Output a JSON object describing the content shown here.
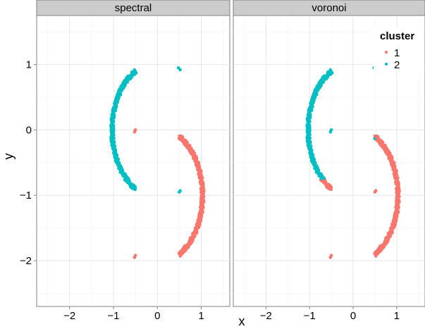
{
  "chart_data": {
    "type": "scatter",
    "facets": [
      "spectral",
      "voronoi"
    ],
    "xlabel": "x",
    "ylabel": "y",
    "xlim": [
      -2.75,
      1.65
    ],
    "ylim": [
      -2.7,
      1.75
    ],
    "x_ticks": [
      -2,
      -1,
      0,
      1
    ],
    "y_ticks": [
      -2,
      -1,
      0,
      1
    ],
    "grid": true,
    "legend": {
      "title": "cluster",
      "position": "top-right",
      "entries": [
        {
          "label": "1",
          "color": "#F8766D"
        },
        {
          "label": "2",
          "color": "#00BFC4"
        }
      ]
    },
    "shapes": {
      "upper_c": {
        "center": [
          0,
          0
        ],
        "radius": 1.03,
        "theta_start_deg": -61,
        "theta_end_deg": 61
      },
      "lower_c": {
        "center": [
          0,
          -1
        ],
        "radius": 1.03,
        "theta_start_deg": -61,
        "theta_end_deg": 61
      }
    },
    "clusters": {
      "spectral": {
        "upper_c": "2",
        "lower_c": "1"
      },
      "voronoi": {
        "boundary_x": 0.5,
        "boundary_y": -0.75,
        "note_rule": "point is cluster 1 if x > 0.5 or y < -0.75"
      }
    }
  }
}
